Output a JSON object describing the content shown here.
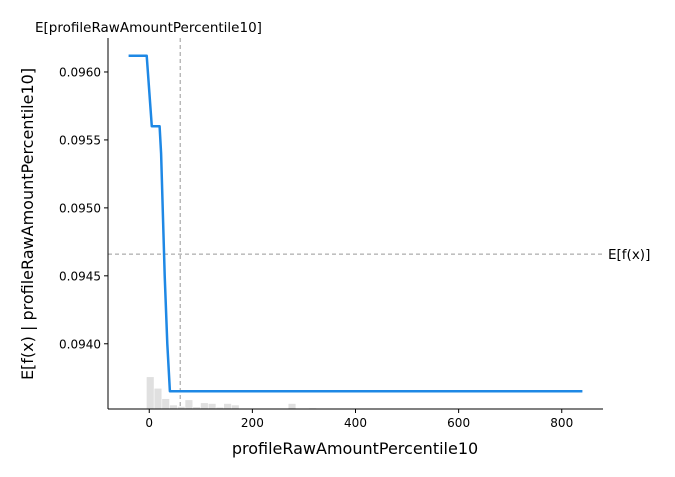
{
  "chart_data": {
    "type": "line",
    "xlabel": "profileRawAmountPercentile10",
    "ylabel": "E[f(x) | profileRawAmountPercentile10]",
    "xlim": [
      -80,
      880
    ],
    "ylim": [
      0.09352,
      0.09625
    ],
    "x_ticks": [
      0,
      200,
      400,
      600,
      800
    ],
    "y_ticks": [
      0.094,
      0.0945,
      0.095,
      0.0955,
      0.096
    ],
    "x_tick_labels": [
      "0",
      "200",
      "400",
      "600",
      "800"
    ],
    "y_tick_labels": [
      "0.0940",
      "0.0945",
      "0.0950",
      "0.0955",
      "0.0960"
    ],
    "grid": false,
    "series": [
      {
        "color": "#1e88e5",
        "x": [
          -40,
          -5,
          5,
          20,
          23,
          30,
          35,
          40,
          840
        ],
        "y": [
          0.09612,
          0.09612,
          0.0956,
          0.0956,
          0.0954,
          0.0945,
          0.094,
          0.09365,
          0.09365
        ]
      }
    ],
    "histogram": {
      "color": "#e0e0e0",
      "bins": [
        {
          "x0": -5,
          "x1": 10,
          "height": 0.086
        },
        {
          "x0": 10,
          "x1": 25,
          "height": 0.055
        },
        {
          "x0": 25,
          "x1": 40,
          "height": 0.027
        },
        {
          "x0": 40,
          "x1": 55,
          "height": 0.01
        },
        {
          "x0": 55,
          "x1": 70,
          "height": 0.006
        },
        {
          "x0": 70,
          "x1": 85,
          "height": 0.024
        },
        {
          "x0": 85,
          "x1": 100,
          "height": 0.005
        },
        {
          "x0": 100,
          "x1": 115,
          "height": 0.016
        },
        {
          "x0": 115,
          "x1": 130,
          "height": 0.014
        },
        {
          "x0": 130,
          "x1": 145,
          "height": 0.004
        },
        {
          "x0": 145,
          "x1": 160,
          "height": 0.014
        },
        {
          "x0": 160,
          "x1": 175,
          "height": 0.01
        },
        {
          "x0": 270,
          "x1": 285,
          "height": 0.014
        },
        {
          "x0": 310,
          "x1": 325,
          "height": 0.002
        }
      ]
    },
    "reference_lines": {
      "vertical": {
        "x": 60,
        "label": "E[profileRawAmountPercentile10]",
        "color": "#999999"
      },
      "horizontal": {
        "y": 0.09466,
        "label": "E[f(x)]",
        "color": "#999999"
      }
    }
  }
}
